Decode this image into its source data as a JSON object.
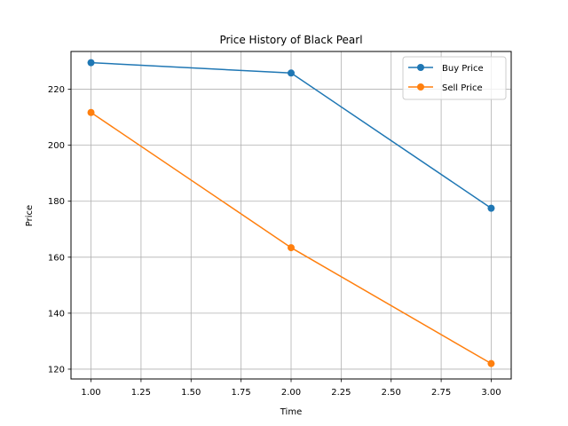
{
  "chart_data": {
    "type": "line",
    "title": "Price History of Black Pearl",
    "xlabel": "Time",
    "ylabel": "Price",
    "x": [
      1.0,
      2.0,
      3.0
    ],
    "xlim": [
      0.9,
      3.1
    ],
    "ylim": [
      116.5,
      233.5
    ],
    "xticks": [
      "1.00",
      "1.25",
      "1.50",
      "1.75",
      "2.00",
      "2.25",
      "2.50",
      "2.75",
      "3.00"
    ],
    "yticks": [
      "120",
      "140",
      "160",
      "180",
      "200",
      "220"
    ],
    "grid": true,
    "legend_position": "top-right",
    "series": [
      {
        "name": "Buy Price",
        "color": "#1f77b4",
        "marker": "circle",
        "values": [
          229.5,
          225.8,
          177.5
        ]
      },
      {
        "name": "Sell Price",
        "color": "#ff7f0e",
        "marker": "circle",
        "values": [
          211.7,
          163.4,
          122.0
        ]
      }
    ]
  }
}
